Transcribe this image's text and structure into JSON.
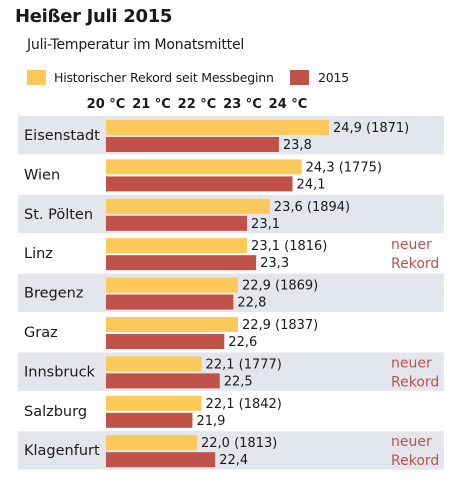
{
  "header": {
    "title": "Heißer Juli 2015",
    "subtitle": "Juli-Temperatur im Monatsmittel"
  },
  "colors": {
    "record": "#fcc95a",
    "year2015": "#c0524a",
    "band": "#e3e6ed",
    "note": "#c0524a"
  },
  "chart_data": {
    "type": "bar",
    "orientation": "horizontal",
    "title": "Heißer Juli 2015",
    "subtitle": "Juli-Temperatur im Monatsmittel",
    "x_ticks": [
      "20 °C",
      "21 °C",
      "22 °C",
      "23 °C",
      "24 °C"
    ],
    "xlim": [
      20,
      25
    ],
    "legend_position": "top",
    "categories": [
      "Eisenstadt",
      "Wien",
      "St. Pölten",
      "Linz",
      "Bregenz",
      "Graz",
      "Innsbruck",
      "Salzburg",
      "Klagenfurt"
    ],
    "series": [
      {
        "name": "Historischer Rekord seit Messbeginn",
        "values": [
          24.9,
          24.3,
          23.6,
          23.1,
          22.9,
          22.9,
          22.1,
          22.1,
          22.0
        ],
        "labels": [
          "24,9 (1871)",
          "24,3 (1775)",
          "23,6 (1894)",
          "23,1 (1816)",
          "22,9 (1869)",
          "22,9 (1837)",
          "22,1 (1777)",
          "22,1 (1842)",
          "22,0 (1813)"
        ]
      },
      {
        "name": "2015",
        "values": [
          23.8,
          24.1,
          23.1,
          23.3,
          22.8,
          22.6,
          22.5,
          21.9,
          22.4
        ],
        "labels": [
          "23,8",
          "24,1",
          "23,1",
          "23,3",
          "22,8",
          "22,6",
          "22,5",
          "21,9",
          "22,4"
        ]
      }
    ],
    "notes": [
      {
        "category": "Linz",
        "lines": [
          "neuer",
          "Rekord"
        ]
      },
      {
        "category": "Innsbruck",
        "lines": [
          "neuer",
          "Rekord"
        ]
      },
      {
        "category": "Klagenfurt",
        "lines": [
          "neuer",
          "Rekord"
        ]
      }
    ]
  }
}
